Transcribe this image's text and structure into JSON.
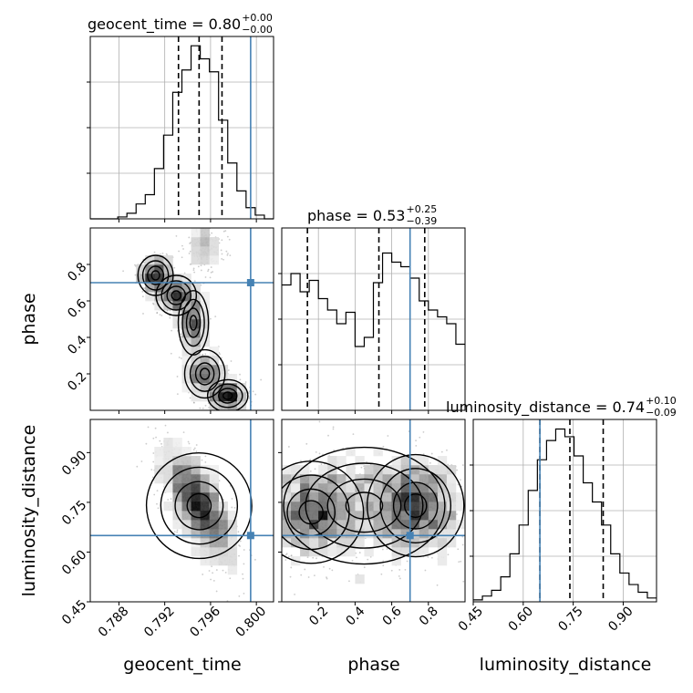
{
  "chart_data": {
    "type": "corner",
    "parameters": [
      "geocent_time",
      "phase",
      "luminosity_distance"
    ],
    "axis_labels": [
      "geocent_time",
      "phase",
      "luminosity_distance"
    ],
    "titles": [
      {
        "main": "geocent_time = 0.80",
        "upper": "+0.00",
        "lower": "−0.00"
      },
      {
        "main": "phase = 0.53",
        "upper": "+0.25",
        "lower": "−0.39"
      },
      {
        "main": "luminosity_distance = 0.74",
        "upper": "+0.10",
        "lower": "−0.09"
      }
    ],
    "ranges": [
      [
        0.7855,
        0.8015
      ],
      [
        0.0,
        1.0
      ],
      [
        0.45,
        1.0
      ]
    ],
    "ticks": [
      {
        "values": [
          0.788,
          0.792,
          0.796,
          0.8
        ],
        "labels": [
          "0.788",
          "0.792",
          "0.796",
          "0.800"
        ]
      },
      {
        "values": [
          0.2,
          0.4,
          0.6,
          0.8
        ],
        "labels": [
          "0.2",
          "0.4",
          "0.6",
          "0.8"
        ]
      },
      {
        "values": [
          0.45,
          0.6,
          0.75,
          0.9
        ],
        "labels": [
          "0.45",
          "0.60",
          "0.75",
          "0.90"
        ]
      }
    ],
    "truths": [
      0.7995,
      0.7,
      0.65
    ],
    "truth_color": "#4682b4",
    "quantiles": [
      [
        0.7932,
        0.795,
        0.797
      ],
      [
        0.14,
        0.53,
        0.78
      ],
      [
        0.65,
        0.74,
        0.84
      ]
    ],
    "histograms": [
      {
        "edges": [
          0.7855,
          0.7863,
          0.7871,
          0.7879,
          0.7887,
          0.7895,
          0.7903,
          0.7911,
          0.7919,
          0.7927,
          0.7935,
          0.7943,
          0.7951,
          0.7959,
          0.7967,
          0.7975,
          0.7983,
          0.7991,
          0.7999,
          0.8007,
          0.8015
        ],
        "counts": [
          0,
          0,
          0,
          1,
          3,
          8,
          13,
          27,
          45,
          68,
          80,
          93,
          86,
          79,
          53,
          30,
          15,
          6,
          2,
          0
        ],
        "ymax": 98
      },
      {
        "edges": [
          0.0,
          0.05,
          0.1,
          0.15,
          0.2,
          0.25,
          0.3,
          0.35,
          0.4,
          0.45,
          0.5,
          0.55,
          0.6,
          0.65,
          0.7,
          0.75,
          0.8,
          0.85,
          0.9,
          0.95,
          1.0
        ],
        "counts": [
          55,
          60,
          52,
          57,
          49,
          44,
          38,
          43,
          28,
          32,
          56,
          69,
          65,
          63,
          58,
          48,
          44,
          41,
          38,
          29
        ],
        "ymax": 80
      },
      {
        "edges": [
          0.45,
          0.4775,
          0.505,
          0.5325,
          0.56,
          0.5875,
          0.615,
          0.6425,
          0.67,
          0.6975,
          0.725,
          0.7525,
          0.78,
          0.8075,
          0.835,
          0.8625,
          0.89,
          0.9175,
          0.945,
          0.9725,
          1.0
        ],
        "counts": [
          1,
          3,
          6,
          13,
          25,
          40,
          58,
          74,
          84,
          90,
          86,
          76,
          62,
          52,
          40,
          25,
          15,
          9,
          5,
          2
        ],
        "ymax": 95
      }
    ],
    "grid": true
  }
}
